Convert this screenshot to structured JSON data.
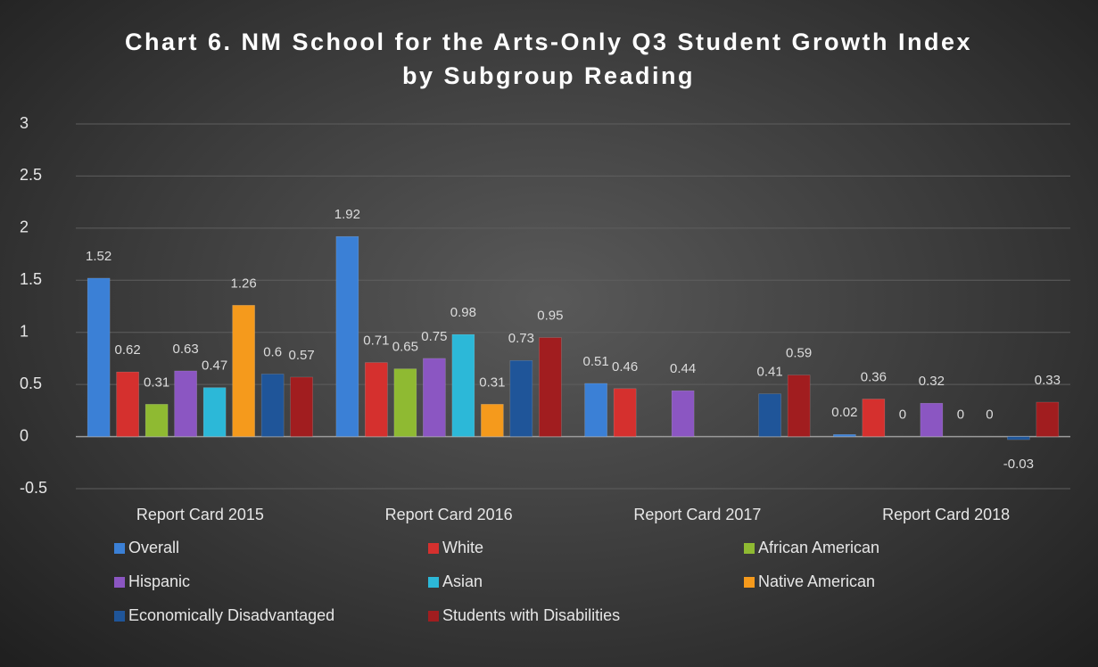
{
  "chart_data": {
    "type": "bar",
    "title": "Chart 6. NM School for the Arts-Only Q3 Student Growth Index by Subgroup Reading",
    "categories": [
      "Report Card 2015",
      "Report Card 2016",
      "Report Card 2017",
      "Report Card 2018"
    ],
    "series": [
      {
        "name": "Overall",
        "color": "#3b80d6",
        "values": [
          1.52,
          1.92,
          0.51,
          0.02
        ]
      },
      {
        "name": "White",
        "color": "#d5302e",
        "values": [
          0.62,
          0.71,
          0.46,
          0.36
        ]
      },
      {
        "name": "African American",
        "color": "#8fba32",
        "values": [
          0.31,
          0.65,
          null,
          0
        ]
      },
      {
        "name": "Hispanic",
        "color": "#8b56c2",
        "values": [
          0.63,
          0.75,
          0.44,
          0.32
        ]
      },
      {
        "name": "Asian",
        "color": "#2cb8d8",
        "values": [
          0.47,
          0.98,
          null,
          0
        ]
      },
      {
        "name": "Native American",
        "color": "#f59a1c",
        "values": [
          1.26,
          0.31,
          null,
          0
        ]
      },
      {
        "name": "Economically Disadvantaged",
        "color": "#1f5599",
        "values": [
          0.6,
          0.73,
          0.41,
          -0.03
        ]
      },
      {
        "name": "Students with Disabilities",
        "color": "#a11d1f",
        "values": [
          0.57,
          0.95,
          0.59,
          0.33
        ]
      }
    ],
    "ylim": [
      -0.5,
      3
    ],
    "yticks": [
      -0.5,
      0,
      0.5,
      1,
      1.5,
      2,
      2.5,
      3
    ],
    "grid": true,
    "legend": "bottom"
  }
}
